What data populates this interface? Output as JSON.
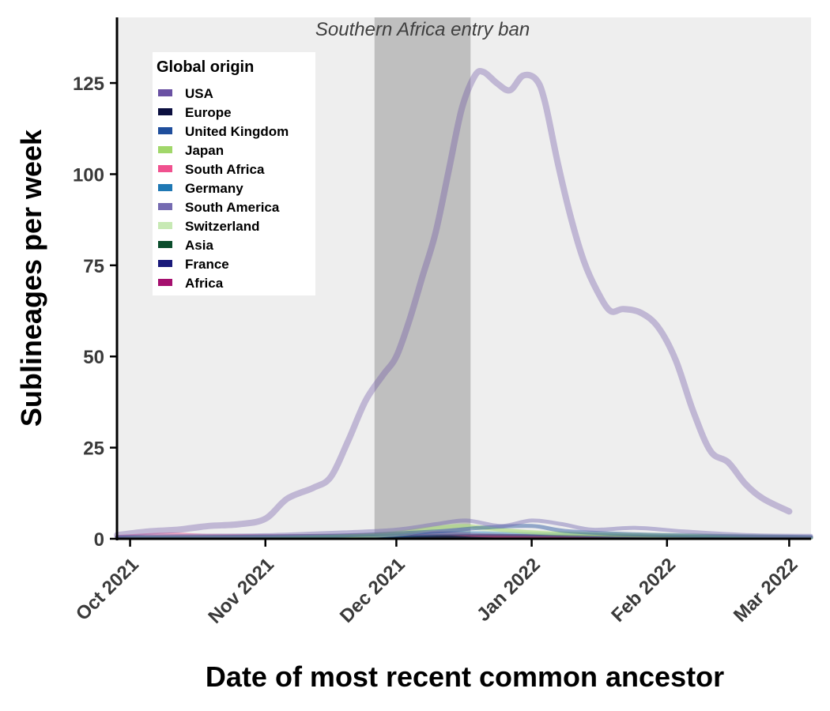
{
  "chart_data": {
    "type": "line",
    "xlabel": "Date of most recent common ancestor",
    "ylabel": "Sublineages per week",
    "xlim": [
      "2021-09-28",
      "2022-03-06"
    ],
    "ylim": [
      0,
      143
    ],
    "x_ticks": [
      {
        "date": "2021-10-01",
        "label": "Oct 2021"
      },
      {
        "date": "2021-11-01",
        "label": "Nov 2021"
      },
      {
        "date": "2021-12-01",
        "label": "Dec 2021"
      },
      {
        "date": "2022-01-01",
        "label": "Jan 2022"
      },
      {
        "date": "2022-02-01",
        "label": "Feb 2022"
      },
      {
        "date": "2022-03-01",
        "label": "Mar 2022"
      }
    ],
    "y_ticks": [
      0,
      25,
      50,
      75,
      100,
      125
    ],
    "grid": false,
    "background": "#eeeeee",
    "shaded_region": {
      "start": "2021-11-26",
      "end": "2021-12-18",
      "label": "Southern Africa entry ban",
      "color": "#bfbfbf"
    },
    "legend": {
      "title": "Global origin",
      "position": "top-left",
      "entries": [
        {
          "name": "USA",
          "color": "#6a51a3"
        },
        {
          "name": "Europe",
          "color": "#0b0f3f"
        },
        {
          "name": "United Kingdom",
          "color": "#1f4e9c"
        },
        {
          "name": "Japan",
          "color": "#a1d76a"
        },
        {
          "name": "South Africa",
          "color": "#f0518f"
        },
        {
          "name": "Germany",
          "color": "#1f78b4"
        },
        {
          "name": "South America",
          "color": "#756bb1"
        },
        {
          "name": "Switzerland",
          "color": "#c7e9b4"
        },
        {
          "name": "Asia",
          "color": "#0b4d2c"
        },
        {
          "name": "France",
          "color": "#1a1a7a"
        },
        {
          "name": "Africa",
          "color": "#a50f6e"
        }
      ]
    },
    "series": [
      {
        "name": "USA",
        "color": "#6a51a3",
        "points": [
          [
            "2021-09-28",
            1
          ],
          [
            "2021-10-05",
            2
          ],
          [
            "2021-10-12",
            2.5
          ],
          [
            "2021-10-19",
            3.5
          ],
          [
            "2021-10-26",
            4
          ],
          [
            "2021-11-01",
            5.5
          ],
          [
            "2021-11-06",
            11
          ],
          [
            "2021-11-12",
            14
          ],
          [
            "2021-11-16",
            17
          ],
          [
            "2021-11-20",
            27
          ],
          [
            "2021-11-24",
            38
          ],
          [
            "2021-11-28",
            45
          ],
          [
            "2021-12-01",
            50
          ],
          [
            "2021-12-04",
            60
          ],
          [
            "2021-12-07",
            72
          ],
          [
            "2021-12-10",
            84
          ],
          [
            "2021-12-13",
            101
          ],
          [
            "2021-12-16",
            118
          ],
          [
            "2021-12-19",
            127
          ],
          [
            "2021-12-21",
            128
          ],
          [
            "2021-12-24",
            125
          ],
          [
            "2021-12-27",
            123
          ],
          [
            "2021-12-30",
            127
          ],
          [
            "2022-01-02",
            126
          ],
          [
            "2022-01-04",
            120
          ],
          [
            "2022-01-07",
            103
          ],
          [
            "2022-01-10",
            88
          ],
          [
            "2022-01-13",
            76
          ],
          [
            "2022-01-16",
            68
          ],
          [
            "2022-01-19",
            62.5
          ],
          [
            "2022-01-22",
            63
          ],
          [
            "2022-01-26",
            62
          ],
          [
            "2022-01-30",
            58
          ],
          [
            "2022-02-03",
            49
          ],
          [
            "2022-02-07",
            35
          ],
          [
            "2022-02-11",
            24
          ],
          [
            "2022-02-15",
            21
          ],
          [
            "2022-02-19",
            15
          ],
          [
            "2022-02-23",
            11
          ],
          [
            "2022-03-01",
            7.5
          ]
        ]
      },
      {
        "name": "South America",
        "color": "#756bb1",
        "points": [
          [
            "2021-09-28",
            0.5
          ],
          [
            "2021-10-15",
            0.8
          ],
          [
            "2021-11-01",
            1
          ],
          [
            "2021-11-20",
            1.8
          ],
          [
            "2021-12-01",
            2.5
          ],
          [
            "2021-12-10",
            4
          ],
          [
            "2021-12-17",
            5
          ],
          [
            "2021-12-25",
            3.5
          ],
          [
            "2022-01-01",
            5
          ],
          [
            "2022-01-08",
            4
          ],
          [
            "2022-01-15",
            2.5
          ],
          [
            "2022-01-25",
            3
          ],
          [
            "2022-02-05",
            2
          ],
          [
            "2022-02-20",
            1
          ],
          [
            "2022-03-06",
            0.8
          ]
        ]
      },
      {
        "name": "United Kingdom",
        "color": "#1f4e9c",
        "points": [
          [
            "2021-09-28",
            0.3
          ],
          [
            "2021-11-15",
            0.8
          ],
          [
            "2021-12-10",
            2
          ],
          [
            "2021-12-20",
            3
          ],
          [
            "2022-01-01",
            3.5
          ],
          [
            "2022-01-10",
            2
          ],
          [
            "2022-02-01",
            1
          ],
          [
            "2022-03-06",
            0.5
          ]
        ]
      },
      {
        "name": "Japan",
        "color": "#a1d76a",
        "points": [
          [
            "2021-09-28",
            0.2
          ],
          [
            "2021-11-20",
            0.8
          ],
          [
            "2021-12-10",
            3
          ],
          [
            "2021-12-17",
            3.5
          ],
          [
            "2021-12-25",
            2.5
          ],
          [
            "2022-01-05",
            1.5
          ],
          [
            "2022-02-01",
            0.8
          ],
          [
            "2022-03-06",
            0.3
          ]
        ]
      },
      {
        "name": "Switzerland",
        "color": "#c7e9b4",
        "points": [
          [
            "2021-09-28",
            0.2
          ],
          [
            "2021-11-25",
            0.8
          ],
          [
            "2021-12-14",
            3.5
          ],
          [
            "2021-12-22",
            2.5
          ],
          [
            "2022-01-10",
            1.5
          ],
          [
            "2022-02-10",
            1
          ],
          [
            "2022-03-06",
            0.3
          ]
        ]
      },
      {
        "name": "Germany",
        "color": "#1f78b4",
        "points": [
          [
            "2021-09-28",
            0.2
          ],
          [
            "2021-11-20",
            0.6
          ],
          [
            "2021-12-15",
            1.5
          ],
          [
            "2022-01-05",
            1.2
          ],
          [
            "2022-02-01",
            0.6
          ],
          [
            "2022-03-06",
            0.3
          ]
        ]
      },
      {
        "name": "South Africa",
        "color": "#f0518f",
        "points": [
          [
            "2021-09-28",
            0.5
          ],
          [
            "2021-10-10",
            1.2
          ],
          [
            "2021-10-20",
            0.8
          ],
          [
            "2021-11-15",
            0.8
          ],
          [
            "2021-12-10",
            1.5
          ],
          [
            "2021-12-20",
            1
          ],
          [
            "2022-01-10",
            0.5
          ],
          [
            "2022-03-06",
            0.3
          ]
        ]
      },
      {
        "name": "Europe",
        "color": "#0b0f3f",
        "points": [
          [
            "2021-09-28",
            0.2
          ],
          [
            "2021-11-20",
            0.4
          ],
          [
            "2021-12-15",
            0.8
          ],
          [
            "2022-01-10",
            0.6
          ],
          [
            "2022-03-06",
            0.2
          ]
        ]
      },
      {
        "name": "Asia",
        "color": "#0b4d2c",
        "points": [
          [
            "2021-09-28",
            0.1
          ],
          [
            "2021-12-01",
            0.4
          ],
          [
            "2021-12-20",
            0.6
          ],
          [
            "2022-01-20",
            0.4
          ],
          [
            "2022-03-06",
            0.1
          ]
        ]
      },
      {
        "name": "France",
        "color": "#1a1a7a",
        "points": [
          [
            "2021-09-28",
            0.1
          ],
          [
            "2021-12-05",
            0.3
          ],
          [
            "2021-12-25",
            0.5
          ],
          [
            "2022-02-01",
            0.3
          ],
          [
            "2022-03-06",
            0.1
          ]
        ]
      },
      {
        "name": "Africa",
        "color": "#a50f6e",
        "points": [
          [
            "2021-09-28",
            0.2
          ],
          [
            "2021-11-25",
            0.8
          ],
          [
            "2021-12-10",
            0.6
          ],
          [
            "2021-12-25",
            0.8
          ],
          [
            "2022-01-15",
            0.4
          ],
          [
            "2022-03-06",
            0.2
          ]
        ]
      }
    ]
  }
}
